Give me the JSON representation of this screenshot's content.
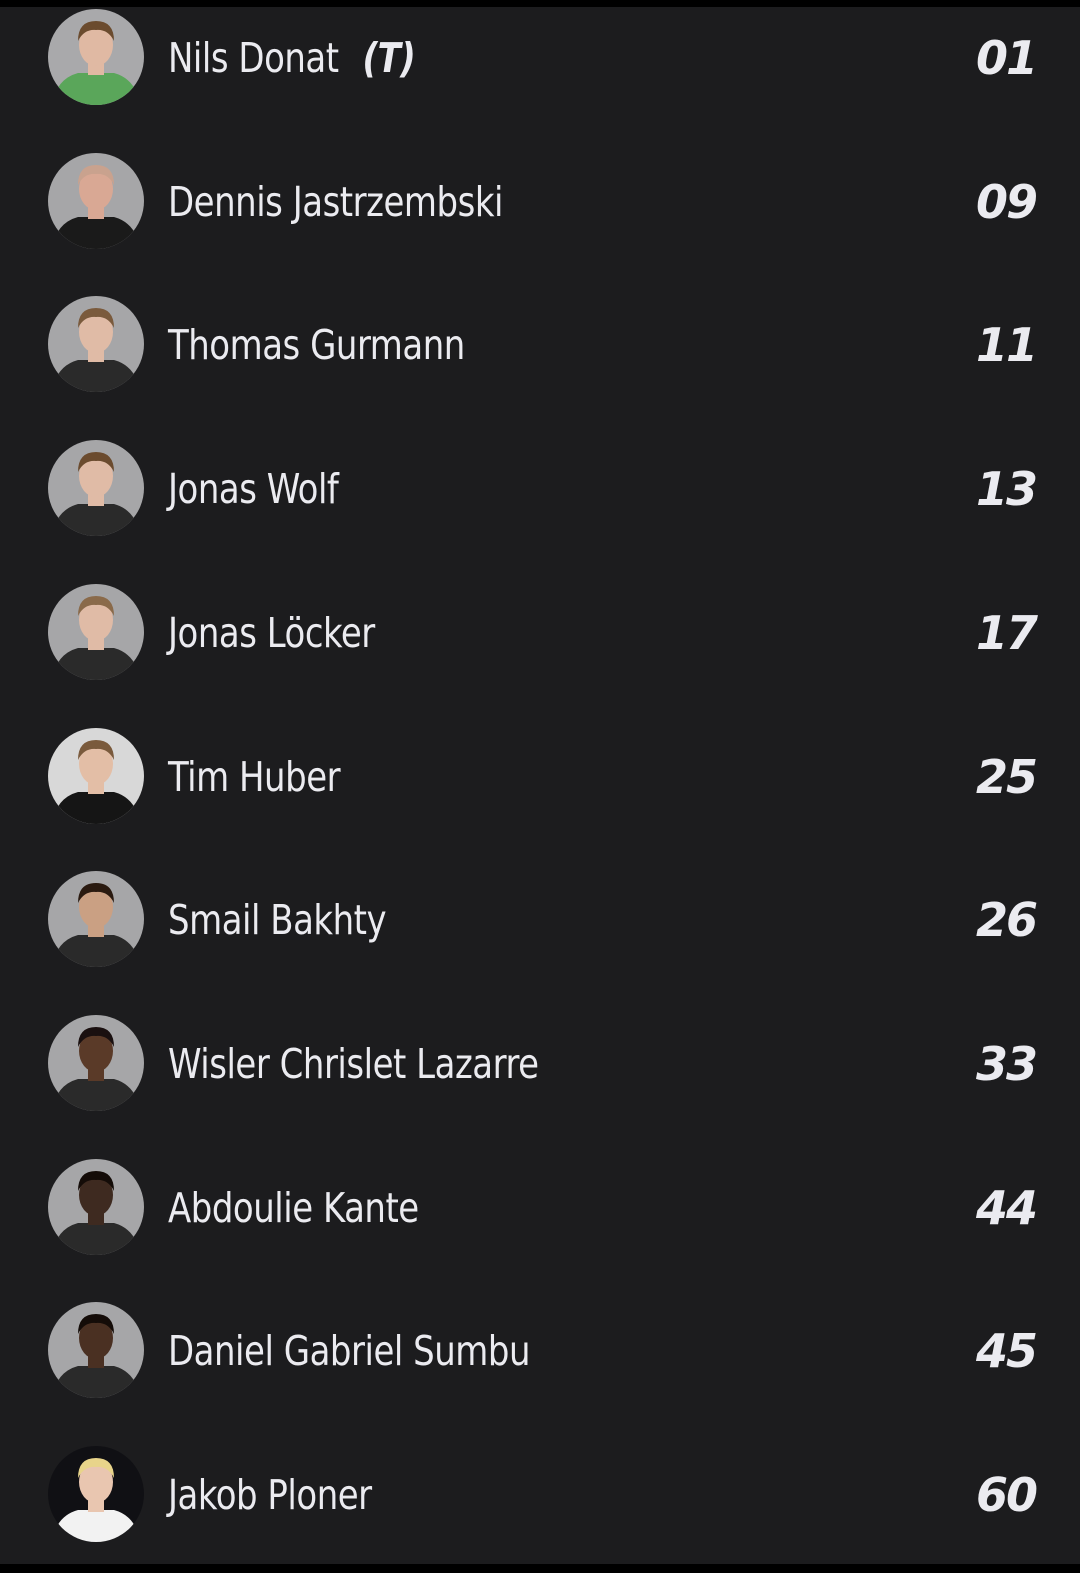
{
  "colors": {
    "background": "#1c1c1e",
    "text": "#ebebf0"
  },
  "players": [
    {
      "name": "Nils Donat",
      "tag": "(T)",
      "number": "01",
      "avatar_bg": "#a9a9ab",
      "shirt": "#5aa65a",
      "skin": "#e0b9a3",
      "hair": "#6b4b2e"
    },
    {
      "name": "Dennis Jastrzembski",
      "tag": "",
      "number": "09",
      "avatar_bg": "#a6a6a8",
      "shirt": "#1a1a1a",
      "skin": "#d9a894",
      "hair": "#c9a28e"
    },
    {
      "name": "Thomas Gurmann",
      "tag": "",
      "number": "11",
      "avatar_bg": "#a6a6a8",
      "shirt": "#2a2a2a",
      "skin": "#e0bba6",
      "hair": "#7a5a3c"
    },
    {
      "name": "Jonas Wolf",
      "tag": "",
      "number": "13",
      "avatar_bg": "#a6a6a8",
      "shirt": "#2a2a2a",
      "skin": "#e0bba6",
      "hair": "#6b4b2e"
    },
    {
      "name": "Jonas Löcker",
      "tag": "",
      "number": "17",
      "avatar_bg": "#a6a6a8",
      "shirt": "#2a2a2a",
      "skin": "#e0bba6",
      "hair": "#8a6a4a"
    },
    {
      "name": "Tim Huber",
      "tag": "",
      "number": "25",
      "avatar_bg": "#d8d8d8",
      "shirt": "#151515",
      "skin": "#e3bea6",
      "hair": "#7a5a3c"
    },
    {
      "name": "Smail Bakhty",
      "tag": "",
      "number": "26",
      "avatar_bg": "#a6a6a8",
      "shirt": "#2a2a2a",
      "skin": "#caa083",
      "hair": "#2a1a10"
    },
    {
      "name": "Wisler Chrislet Lazarre",
      "tag": "",
      "number": "33",
      "avatar_bg": "#a6a6a8",
      "shirt": "#2a2a2a",
      "skin": "#5a3a28",
      "hair": "#1a1010"
    },
    {
      "name": "Abdoulie Kante",
      "tag": "",
      "number": "44",
      "avatar_bg": "#a6a6a8",
      "shirt": "#2a2a2a",
      "skin": "#3e2a20",
      "hair": "#140c08"
    },
    {
      "name": "Daniel Gabriel Sumbu",
      "tag": "",
      "number": "45",
      "avatar_bg": "#a6a6a8",
      "shirt": "#2a2a2a",
      "skin": "#4a3022",
      "hair": "#140c08"
    },
    {
      "name": "Jakob Ploner",
      "tag": "",
      "number": "60",
      "avatar_bg": "#101014",
      "shirt": "#f2f2f2",
      "skin": "#e9c6b0",
      "hair": "#e8d48a"
    }
  ]
}
